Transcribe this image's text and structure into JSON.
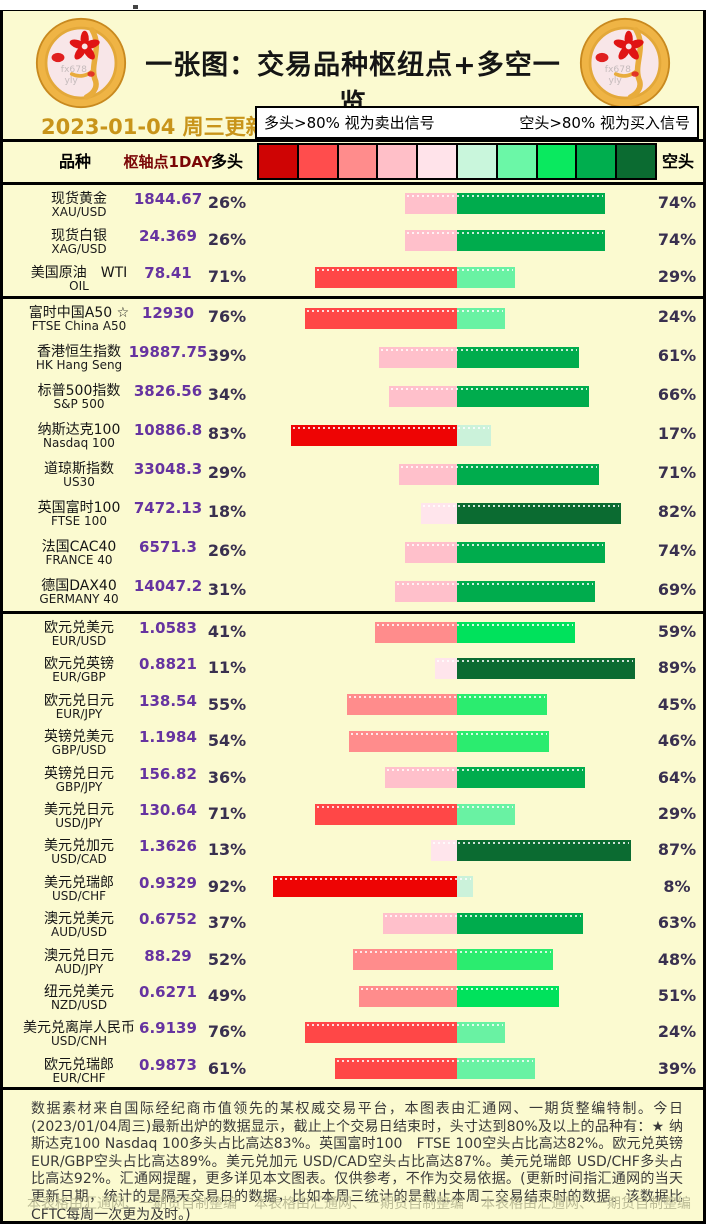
{
  "page": {
    "title": "一张图：交易品种枢纽点+多空一览",
    "update_date": "2023-01-04 周三更新",
    "legend": {
      "long_signal": "多头>80% 视为卖出信号",
      "short_signal": "空头>80% 视为买入信号"
    },
    "columns": {
      "instrument": "品种",
      "pivot": "枢轴点1DAY",
      "long": "多头",
      "short": "空头"
    },
    "footnote": "数据素材来自国际经纪商市值领先的某权威交易平台，本图表由汇通网、一期货整编特制。今日(2023/01/04周三)最新出炉的数据显示，截止上个交易日结束时，头寸达到80%及以上的品种有：★ 纳斯达克100 Nasdaq 100多头占比高达83%。英国富时100　FTSE 100空头占比高达82%。欧元兑英镑 EUR/GBP空头占比高达89%。美元兑加元 USD/CAD空头占比高达87%。美元兑瑞郎 USD/CHF多头占比高达92%。汇通网提醒，更多详见本文图表。仅供参考，不作为交易依据。(更新时间指汇通网的当天更新日期，统计的是隔天交易日的数据，比如本周三统计的是截止本周二交易结束时的数据。该数据比CFTC每周一次更为及时。)",
    "credits": [
      "本表格由汇通网、一期货自制整编",
      "本表格由汇通网、一期货自制整编",
      "本表格由汇通网、一期货自制整编"
    ]
  },
  "colors": {
    "panel_bg": "#FBFAD0",
    "date_text": "#C8941A",
    "pivot_header_text": "#7A0606",
    "pivot_value_text": "#6633A0",
    "percent_text": "#39304F",
    "footnote_text": "#3A3A3A",
    "credits_text": "#BDBD97",
    "color_scale": [
      "#CF0404",
      "#FF4D4D",
      "#FF8C8C",
      "#FFBFC8",
      "#FFE3EA",
      "#C9F6DC",
      "#6BF7A7",
      "#0AE95F",
      "#00AE4E",
      "#0B6B31"
    ],
    "long_bar_steps": [
      [
        80,
        "#EE0404"
      ],
      [
        60,
        "#FF4747"
      ],
      [
        40,
        "#FF8C8C"
      ],
      [
        25,
        "#FFC0CB"
      ],
      [
        0,
        "#FFE5EC"
      ]
    ],
    "short_bar_steps": [
      [
        80,
        "#0B6B31"
      ],
      [
        60,
        "#00AC4D"
      ],
      [
        50,
        "#00E25C"
      ],
      [
        40,
        "#2BEC6F"
      ],
      [
        20,
        "#69F2A3"
      ],
      [
        0,
        "#CBF2DA"
      ]
    ]
  },
  "chart_data": {
    "type": "bar",
    "subtype": "diverging-horizontal-sentiment",
    "title": "一张图：交易品种枢纽点+多空一览",
    "xlabel": "多头% / 空头%",
    "x_range_pct": [
      0,
      100
    ],
    "legend_position": "top",
    "sections": [
      {
        "name": "commodities",
        "rows": [
          {
            "name_cn": "现货黄金",
            "symbol": "XAU/USD",
            "pivot": "1844.67",
            "long_pct": 26,
            "short_pct": 74
          },
          {
            "name_cn": "现货白银",
            "symbol": "XAG/USD",
            "pivot": "24.369",
            "long_pct": 26,
            "short_pct": 74
          },
          {
            "name_cn": "美国原油　WTI",
            "symbol": "OIL",
            "pivot": "78.41",
            "long_pct": 71,
            "short_pct": 29
          }
        ]
      },
      {
        "name": "indices",
        "rows": [
          {
            "name_cn": "富时中国A50 ☆",
            "symbol": "FTSE China A50",
            "pivot": "12930",
            "long_pct": 76,
            "short_pct": 24
          },
          {
            "name_cn": "香港恒生指数",
            "symbol": "HK Hang Seng",
            "pivot": "19887.75",
            "long_pct": 39,
            "short_pct": 61
          },
          {
            "name_cn": "标普500指数",
            "symbol": "S&P 500",
            "pivot": "3826.56",
            "long_pct": 34,
            "short_pct": 66
          },
          {
            "name_cn": "纳斯达克100",
            "symbol": "Nasdaq 100",
            "pivot": "10886.8",
            "long_pct": 83,
            "short_pct": 17
          },
          {
            "name_cn": "道琼斯指数",
            "symbol": "US30",
            "pivot": "33048.3",
            "long_pct": 29,
            "short_pct": 71
          },
          {
            "name_cn": "英国富时100",
            "symbol": "FTSE 100",
            "pivot": "7472.13",
            "long_pct": 18,
            "short_pct": 82
          },
          {
            "name_cn": "法国CAC40",
            "symbol": "FRANCE 40",
            "pivot": "6571.3",
            "long_pct": 26,
            "short_pct": 74
          },
          {
            "name_cn": "德国DAX40",
            "symbol": "GERMANY 40",
            "pivot": "14047.2",
            "long_pct": 31,
            "short_pct": 69
          }
        ]
      },
      {
        "name": "forex",
        "rows": [
          {
            "name_cn": "欧元兑美元",
            "symbol": "EUR/USD",
            "pivot": "1.0583",
            "long_pct": 41,
            "short_pct": 59
          },
          {
            "name_cn": "欧元兑英镑",
            "symbol": "EUR/GBP",
            "pivot": "0.8821",
            "long_pct": 11,
            "short_pct": 89
          },
          {
            "name_cn": "欧元兑日元",
            "symbol": "EUR/JPY",
            "pivot": "138.54",
            "long_pct": 55,
            "short_pct": 45
          },
          {
            "name_cn": "英镑兑美元",
            "symbol": "GBP/USD",
            "pivot": "1.1984",
            "long_pct": 54,
            "short_pct": 46
          },
          {
            "name_cn": "英镑兑日元",
            "symbol": "GBP/JPY",
            "pivot": "156.82",
            "long_pct": 36,
            "short_pct": 64
          },
          {
            "name_cn": "美元兑日元",
            "symbol": "USD/JPY",
            "pivot": "130.64",
            "long_pct": 71,
            "short_pct": 29
          },
          {
            "name_cn": "美元兑加元",
            "symbol": "USD/CAD",
            "pivot": "1.3626",
            "long_pct": 13,
            "short_pct": 87
          },
          {
            "name_cn": "美元兑瑞郎",
            "symbol": "USD/CHF",
            "pivot": "0.9329",
            "long_pct": 92,
            "short_pct": 8
          },
          {
            "name_cn": "澳元兑美元",
            "symbol": "AUD/USD",
            "pivot": "0.6752",
            "long_pct": 37,
            "short_pct": 63
          },
          {
            "name_cn": "澳元兑日元",
            "symbol": "AUD/JPY",
            "pivot": "88.29",
            "long_pct": 52,
            "short_pct": 48
          },
          {
            "name_cn": "纽元兑美元",
            "symbol": "NZD/USD",
            "pivot": "0.6271",
            "long_pct": 49,
            "short_pct": 51
          },
          {
            "name_cn": "美元兑离岸人民币",
            "symbol": "USD/CNH",
            "pivot": "6.9139",
            "long_pct": 76,
            "short_pct": 24
          },
          {
            "name_cn": "欧元兑瑞郎",
            "symbol": "EUR/CHF",
            "pivot": "0.9873",
            "long_pct": 61,
            "short_pct": 39
          }
        ]
      }
    ]
  }
}
